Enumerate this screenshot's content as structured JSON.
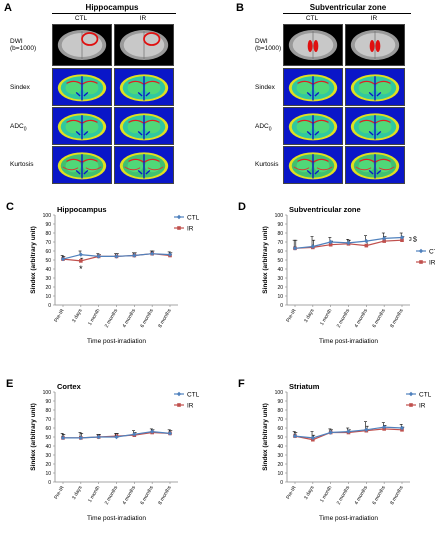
{
  "panel_a": {
    "letter": "A",
    "title": "Hippocampus",
    "columns": [
      "CTL",
      "IR"
    ],
    "rows": [
      "DWI\n(b=1000)",
      "Sindex",
      "ADC0",
      "Kurtosis"
    ],
    "row_labels": [
      "DWI",
      "(b=1000)",
      "Sindex",
      "ADC",
      "0",
      "Kurtosis"
    ]
  },
  "panel_b": {
    "letter": "B",
    "title": "Subventricular zone",
    "columns": [
      "CTL",
      "IR"
    ],
    "row_labels": [
      "DWI",
      "(b=1000)",
      "Sindex",
      "ADC",
      "0",
      "Kurtosis"
    ]
  },
  "colors": {
    "ctl": "#4f81bd",
    "ir": "#c0504d",
    "axis": "#888888"
  },
  "chart_data": [
    {
      "letter": "C",
      "type": "line",
      "title": "Hippocampus",
      "categories": [
        "Pre-IR",
        "3 days",
        "1 month",
        "2 months",
        "4 months",
        "6 months",
        "8 months"
      ],
      "series": [
        {
          "name": "CTL",
          "values": [
            51,
            56,
            54,
            54,
            55,
            57,
            56
          ],
          "err": [
            4,
            4,
            3,
            3,
            3,
            3,
            3
          ]
        },
        {
          "name": "IR",
          "values": [
            51,
            49,
            54,
            54,
            55,
            57,
            55
          ],
          "err": [
            3,
            3,
            2,
            3,
            3,
            3,
            3
          ]
        }
      ],
      "annotation": "*",
      "annotation_index": 1,
      "ylabel": "Sindex (arbitrary unit)",
      "xlabel": "Time post-irradiation",
      "ylim": [
        0,
        100
      ],
      "yticks": [
        0,
        10,
        20,
        30,
        40,
        50,
        60,
        70,
        80,
        90,
        100
      ],
      "legend": "top-right"
    },
    {
      "letter": "D",
      "type": "line",
      "title": "Subventricular zone",
      "categories": [
        "Pre-IR",
        "3 days",
        "1 month",
        "2 months",
        "4 months",
        "6 months",
        "8 months"
      ],
      "series": [
        {
          "name": "CTL",
          "values": [
            63,
            65,
            70,
            69,
            71,
            74,
            75
          ],
          "err": [
            9,
            11,
            5,
            4,
            6,
            6,
            5
          ]
        },
        {
          "name": "IR",
          "values": [
            63,
            64,
            67,
            68,
            66,
            71,
            72
          ],
          "err": [
            9,
            8,
            4,
            4,
            5,
            5,
            4
          ]
        }
      ],
      "annotation": "$",
      "ylabel": "Sindex (arbitrary unit)",
      "xlabel": "Time post-irradiation",
      "ylim": [
        0,
        100
      ],
      "yticks": [
        0,
        10,
        20,
        30,
        40,
        50,
        60,
        70,
        80,
        90,
        100
      ],
      "legend": "right"
    },
    {
      "letter": "E",
      "type": "line",
      "title": "Cortex",
      "categories": [
        "Pre-IR",
        "3 days",
        "1 month",
        "2 months",
        "4 months",
        "6 months",
        "8 months"
      ],
      "series": [
        {
          "name": "CTL",
          "values": [
            49,
            49,
            50,
            50,
            53,
            56,
            54
          ],
          "err": [
            5,
            6,
            3,
            4,
            4,
            3,
            4
          ]
        },
        {
          "name": "IR",
          "values": [
            49,
            49,
            50,
            51,
            52,
            55,
            54
          ],
          "err": [
            4,
            5,
            3,
            3,
            3,
            3,
            3
          ]
        }
      ],
      "ylabel": "Sindex (arbitrary unit)",
      "xlabel": "Time post-irradiation",
      "ylim": [
        0,
        100
      ],
      "yticks": [
        0,
        10,
        20,
        30,
        40,
        50,
        60,
        70,
        80,
        90,
        100
      ],
      "legend": "top-right"
    },
    {
      "letter": "F",
      "type": "line",
      "title": "Striatum",
      "categories": [
        "Pre-IR",
        "3 days",
        "1 month",
        "2 months",
        "4 months",
        "6 months",
        "8 months"
      ],
      "series": [
        {
          "name": "CTL",
          "values": [
            51,
            49,
            55,
            56,
            58,
            61,
            60
          ],
          "err": [
            5,
            7,
            4,
            4,
            9,
            5,
            4
          ]
        },
        {
          "name": "IR",
          "values": [
            51,
            47,
            55,
            55,
            57,
            59,
            58
          ],
          "err": [
            4,
            5,
            3,
            3,
            5,
            4,
            3
          ]
        }
      ],
      "ylabel": "Sindex (arbitrary unit)",
      "xlabel": "Time post-irradiation",
      "ylim": [
        0,
        100
      ],
      "yticks": [
        0,
        10,
        20,
        30,
        40,
        50,
        60,
        70,
        80,
        90,
        100
      ],
      "legend": "top-right"
    }
  ]
}
